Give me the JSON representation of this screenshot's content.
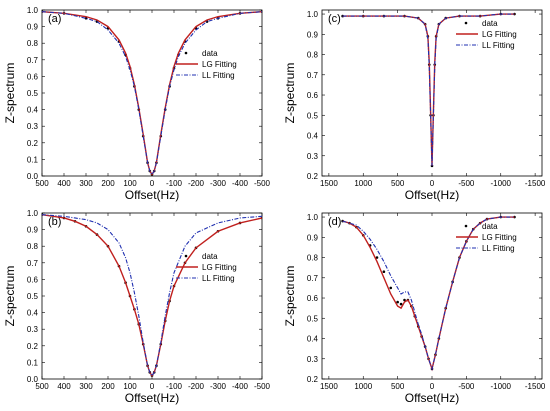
{
  "chart_data": [
    {
      "panel": "(a)",
      "type": "line",
      "xlabel": "Offset(Hz)",
      "ylabel": "Z-spectrum",
      "xlim": [
        500,
        -500
      ],
      "ylim": [
        0,
        1
      ],
      "xticks": [
        500,
        400,
        300,
        200,
        100,
        0,
        -100,
        -200,
        -300,
        -400,
        -500
      ],
      "yticks": [
        0,
        0.1,
        0.2,
        0.3,
        0.4,
        0.5,
        0.6,
        0.7,
        0.8,
        0.9,
        1.0
      ],
      "legend_position": "center-right",
      "series": [
        {
          "name": "data",
          "style": "dots",
          "color": "#000000",
          "x": [
            500,
            400,
            300,
            250,
            200,
            150,
            120,
            100,
            80,
            60,
            40,
            20,
            10,
            0,
            -10,
            -20,
            -40,
            -60,
            -80,
            -100,
            -120,
            -150,
            -200,
            -250,
            -300,
            -400,
            -500
          ],
          "y": [
            0.99,
            0.98,
            0.95,
            0.93,
            0.89,
            0.81,
            0.73,
            0.65,
            0.54,
            0.4,
            0.24,
            0.08,
            0.03,
            0.01,
            0.03,
            0.08,
            0.24,
            0.4,
            0.54,
            0.65,
            0.73,
            0.81,
            0.89,
            0.93,
            0.95,
            0.98,
            0.99
          ]
        },
        {
          "name": "LG Fitting",
          "style": "solid",
          "color": "#c0201e",
          "x": [
            500,
            400,
            300,
            250,
            200,
            150,
            120,
            100,
            80,
            60,
            40,
            20,
            10,
            0,
            -10,
            -20,
            -40,
            -60,
            -80,
            -100,
            -120,
            -150,
            -200,
            -250,
            -300,
            -400,
            -500
          ],
          "y": [
            0.99,
            0.98,
            0.96,
            0.94,
            0.9,
            0.82,
            0.74,
            0.66,
            0.55,
            0.41,
            0.25,
            0.08,
            0.03,
            0.01,
            0.03,
            0.08,
            0.25,
            0.41,
            0.55,
            0.66,
            0.74,
            0.82,
            0.9,
            0.94,
            0.96,
            0.98,
            0.99
          ]
        },
        {
          "name": "LL Fitting",
          "style": "dashdot",
          "color": "#1f2fb0",
          "x": [
            500,
            400,
            300,
            250,
            200,
            150,
            120,
            100,
            80,
            60,
            40,
            20,
            10,
            0,
            -10,
            -20,
            -40,
            -60,
            -80,
            -100,
            -120,
            -150,
            -200,
            -250,
            -300,
            -400,
            -500
          ],
          "y": [
            0.99,
            0.98,
            0.95,
            0.93,
            0.88,
            0.8,
            0.72,
            0.64,
            0.54,
            0.4,
            0.24,
            0.08,
            0.03,
            0.01,
            0.03,
            0.08,
            0.24,
            0.4,
            0.54,
            0.64,
            0.72,
            0.8,
            0.88,
            0.93,
            0.95,
            0.98,
            0.99
          ]
        }
      ]
    },
    {
      "panel": "(c)",
      "type": "line",
      "xlabel": "Offset(Hz)",
      "ylabel": "Z-spectrum",
      "xlim": [
        1600,
        -1600
      ],
      "ylim": [
        0.2,
        1.02
      ],
      "xticks": [
        1500,
        1000,
        500,
        0,
        -500,
        -1000,
        -1500
      ],
      "yticks": [
        0.2,
        0.3,
        0.4,
        0.5,
        0.6,
        0.7,
        0.8,
        0.9,
        1.0
      ],
      "legend_position": "top-right",
      "series": [
        {
          "name": "data",
          "style": "dots",
          "color": "#000000",
          "x": [
            1300,
            1000,
            700,
            400,
            200,
            100,
            60,
            40,
            20,
            0,
            -20,
            -40,
            -60,
            -100,
            -200,
            -400,
            -700,
            -1000,
            -1200
          ],
          "y": [
            0.99,
            0.99,
            0.99,
            0.99,
            0.98,
            0.95,
            0.89,
            0.75,
            0.5,
            0.25,
            0.5,
            0.75,
            0.89,
            0.95,
            0.98,
            0.99,
            0.99,
            1.0,
            1.0
          ]
        },
        {
          "name": "LG Fitting",
          "style": "solid",
          "color": "#c0201e",
          "x": [
            1300,
            1000,
            700,
            400,
            200,
            100,
            60,
            40,
            20,
            0,
            -20,
            -40,
            -60,
            -100,
            -200,
            -400,
            -700,
            -1000,
            -1200
          ],
          "y": [
            0.99,
            0.99,
            0.99,
            0.99,
            0.98,
            0.95,
            0.89,
            0.76,
            0.51,
            0.25,
            0.51,
            0.76,
            0.89,
            0.95,
            0.98,
            0.99,
            0.99,
            1.0,
            1.0
          ]
        },
        {
          "name": "LL Fitting",
          "style": "dashdot",
          "color": "#1f2fb0",
          "x": [
            1300,
            1000,
            700,
            400,
            200,
            100,
            60,
            40,
            20,
            0,
            -20,
            -40,
            -60,
            -100,
            -200,
            -400,
            -700,
            -1000,
            -1200
          ],
          "y": [
            0.99,
            0.99,
            0.99,
            0.99,
            0.98,
            0.95,
            0.88,
            0.74,
            0.5,
            0.25,
            0.5,
            0.74,
            0.88,
            0.95,
            0.98,
            0.99,
            0.99,
            1.0,
            1.0
          ]
        }
      ]
    },
    {
      "panel": "(b)",
      "type": "line",
      "xlabel": "Offset(Hz)",
      "ylabel": "Z-spectrum",
      "xlim": [
        500,
        -500
      ],
      "ylim": [
        0,
        1
      ],
      "xticks": [
        500,
        400,
        300,
        200,
        100,
        0,
        -100,
        -200,
        -300,
        -400,
        -500
      ],
      "yticks": [
        0,
        0.1,
        0.2,
        0.3,
        0.4,
        0.5,
        0.6,
        0.7,
        0.8,
        0.9,
        1.0
      ],
      "legend_position": "center-right",
      "series": [
        {
          "name": "data",
          "style": "dots",
          "color": "#000000",
          "x": [
            500,
            400,
            350,
            300,
            250,
            200,
            150,
            120,
            100,
            80,
            60,
            40,
            20,
            10,
            0,
            -10,
            -20,
            -40,
            -60,
            -80,
            -100,
            -150,
            -200,
            -300,
            -400,
            -500
          ],
          "y": [
            0.99,
            0.97,
            0.95,
            0.92,
            0.87,
            0.8,
            0.68,
            0.58,
            0.5,
            0.42,
            0.33,
            0.21,
            0.08,
            0.04,
            0.02,
            0.04,
            0.08,
            0.21,
            0.35,
            0.47,
            0.56,
            0.7,
            0.79,
            0.89,
            0.94,
            0.97
          ]
        },
        {
          "name": "LG Fitting",
          "style": "solid",
          "color": "#c0201e",
          "x": [
            500,
            400,
            350,
            300,
            250,
            200,
            150,
            120,
            100,
            80,
            60,
            40,
            20,
            10,
            0,
            -10,
            -20,
            -40,
            -60,
            -80,
            -100,
            -150,
            -200,
            -300,
            -400,
            -500
          ],
          "y": [
            0.99,
            0.97,
            0.95,
            0.92,
            0.87,
            0.8,
            0.68,
            0.58,
            0.5,
            0.42,
            0.33,
            0.21,
            0.08,
            0.04,
            0.02,
            0.04,
            0.08,
            0.21,
            0.35,
            0.47,
            0.56,
            0.7,
            0.79,
            0.89,
            0.94,
            0.97
          ]
        },
        {
          "name": "LL Fitting",
          "style": "dashdot",
          "color": "#1f2fb0",
          "x": [
            500,
            400,
            350,
            300,
            250,
            200,
            150,
            120,
            100,
            80,
            60,
            40,
            20,
            10,
            0,
            -10,
            -20,
            -40,
            -60,
            -80,
            -100,
            -150,
            -200,
            -300,
            -400,
            -500
          ],
          "y": [
            0.99,
            0.98,
            0.97,
            0.96,
            0.94,
            0.9,
            0.82,
            0.73,
            0.64,
            0.52,
            0.38,
            0.22,
            0.08,
            0.04,
            0.02,
            0.04,
            0.08,
            0.22,
            0.38,
            0.52,
            0.64,
            0.8,
            0.88,
            0.94,
            0.97,
            0.98
          ]
        }
      ]
    },
    {
      "panel": "(d)",
      "type": "line",
      "xlabel": "Offset(Hz)",
      "ylabel": "Z-spectrum",
      "xlim": [
        1600,
        -1600
      ],
      "ylim": [
        0.2,
        1.02
      ],
      "xticks": [
        1500,
        1000,
        500,
        0,
        -500,
        -1000,
        -1500
      ],
      "yticks": [
        0.2,
        0.3,
        0.4,
        0.5,
        0.6,
        0.7,
        0.8,
        0.9,
        1.0
      ],
      "legend_position": "top-right",
      "series": [
        {
          "name": "data",
          "style": "dots",
          "color": "#000000",
          "x": [
            1300,
            1200,
            1100,
            1000,
            900,
            800,
            700,
            600,
            500,
            450,
            400,
            350,
            300,
            250,
            200,
            150,
            100,
            50,
            0,
            -50,
            -100,
            -200,
            -300,
            -400,
            -500,
            -600,
            -700,
            -800,
            -1000,
            -1200
          ],
          "y": [
            0.98,
            0.97,
            0.95,
            0.91,
            0.86,
            0.8,
            0.73,
            0.65,
            0.58,
            0.57,
            0.59,
            0.59,
            0.56,
            0.51,
            0.46,
            0.41,
            0.36,
            0.3,
            0.25,
            0.32,
            0.4,
            0.55,
            0.68,
            0.8,
            0.88,
            0.94,
            0.97,
            0.99,
            1.0,
            1.0
          ]
        },
        {
          "name": "LG Fitting",
          "style": "solid",
          "color": "#c0201e",
          "x": [
            1300,
            1200,
            1100,
            1000,
            900,
            800,
            700,
            600,
            500,
            450,
            400,
            350,
            300,
            250,
            200,
            150,
            100,
            50,
            0,
            -50,
            -100,
            -200,
            -300,
            -400,
            -500,
            -600,
            -700,
            -800,
            -1000,
            -1200
          ],
          "y": [
            0.98,
            0.97,
            0.95,
            0.91,
            0.85,
            0.78,
            0.7,
            0.62,
            0.56,
            0.55,
            0.58,
            0.59,
            0.56,
            0.51,
            0.46,
            0.41,
            0.36,
            0.3,
            0.25,
            0.32,
            0.4,
            0.55,
            0.68,
            0.8,
            0.88,
            0.94,
            0.97,
            0.99,
            1.0,
            1.0
          ]
        },
        {
          "name": "LL Fitting",
          "style": "dashdot",
          "color": "#1f2fb0",
          "x": [
            1300,
            1200,
            1100,
            1000,
            900,
            800,
            700,
            600,
            500,
            450,
            400,
            350,
            300,
            250,
            200,
            150,
            100,
            50,
            0,
            -50,
            -100,
            -200,
            -300,
            -400,
            -500,
            -600,
            -700,
            -800,
            -1000,
            -1200
          ],
          "y": [
            0.98,
            0.97,
            0.96,
            0.93,
            0.89,
            0.84,
            0.78,
            0.71,
            0.65,
            0.62,
            0.63,
            0.63,
            0.59,
            0.53,
            0.47,
            0.42,
            0.36,
            0.3,
            0.25,
            0.32,
            0.4,
            0.55,
            0.68,
            0.8,
            0.88,
            0.94,
            0.97,
            0.99,
            1.0,
            1.0
          ]
        }
      ]
    }
  ]
}
